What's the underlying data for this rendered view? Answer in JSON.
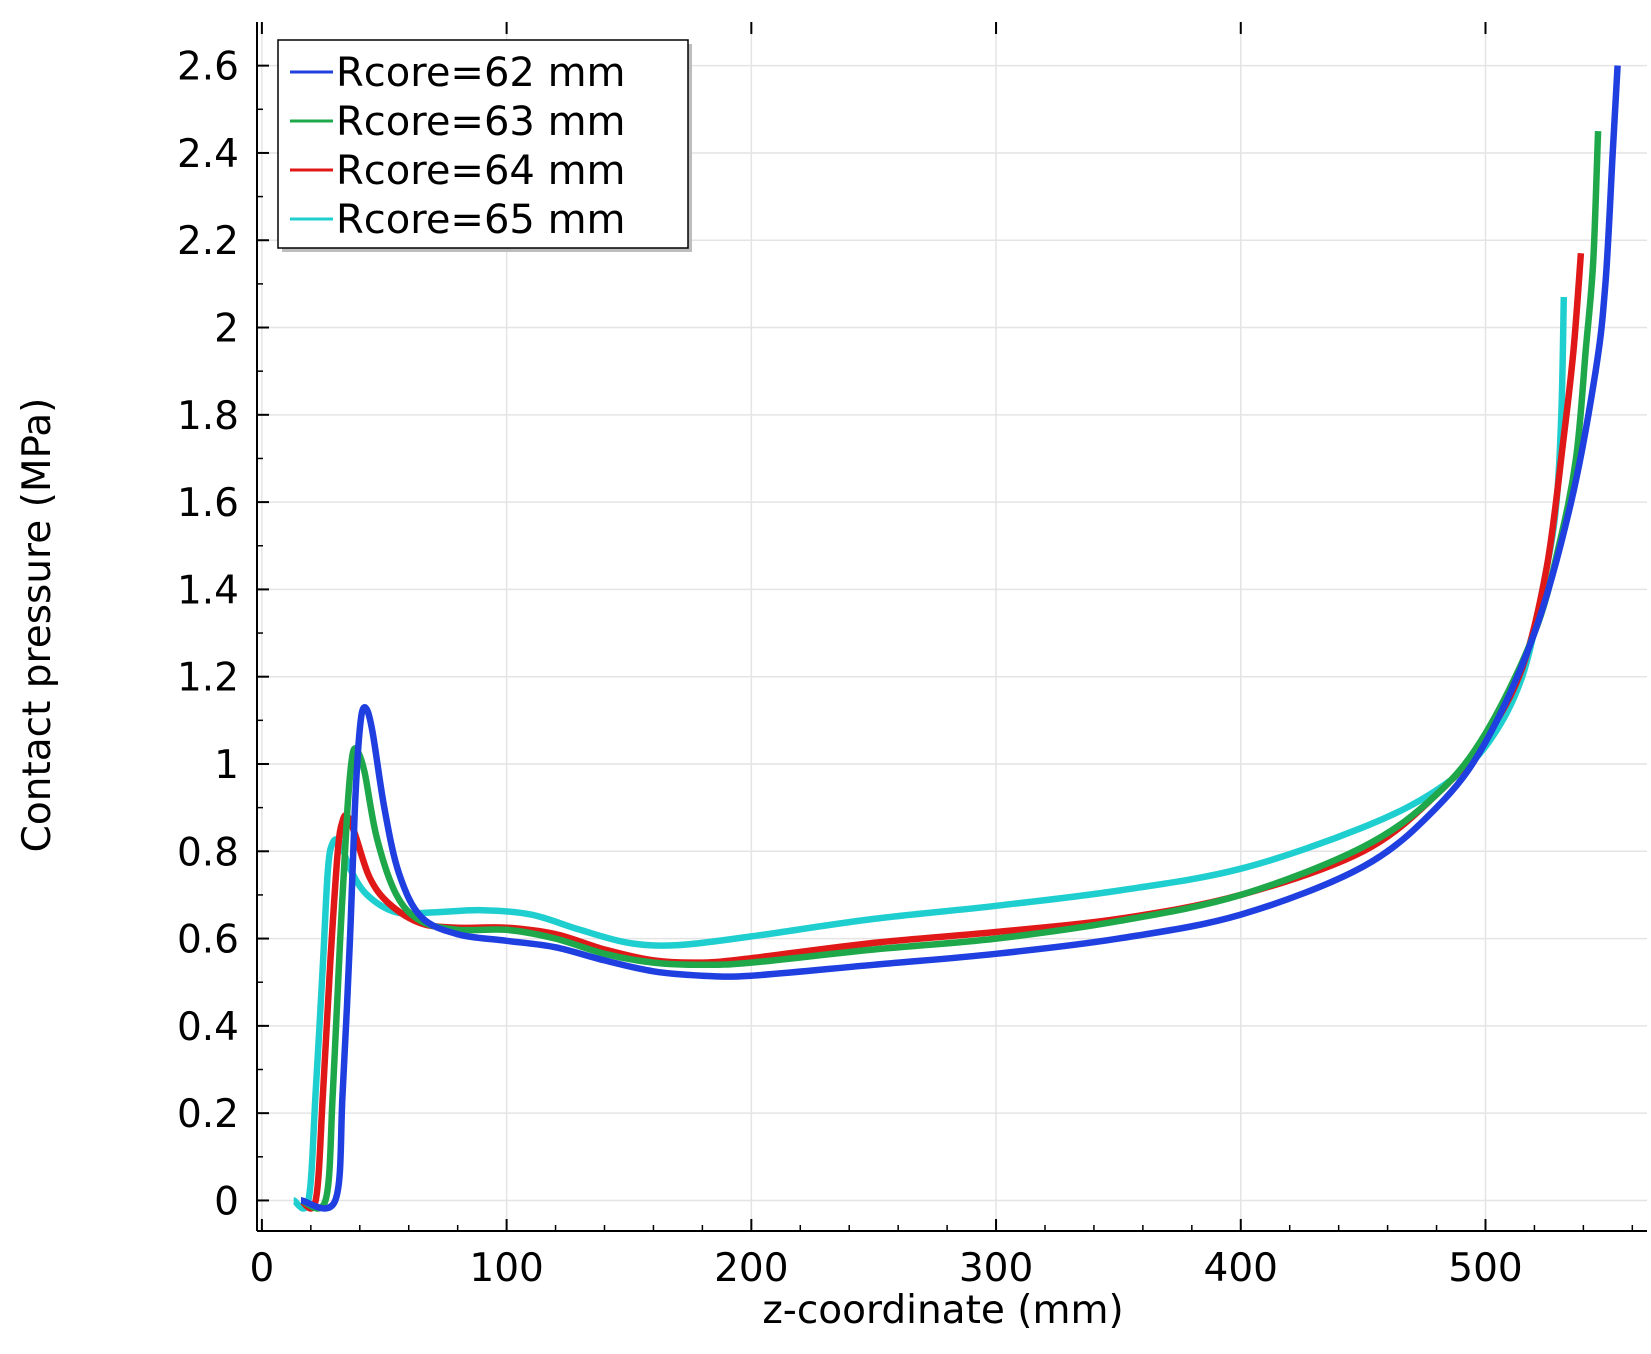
{
  "chart_data": {
    "type": "line",
    "title": "",
    "xlabel": "z-coordinate (mm)",
    "ylabel": "Contact pressure (MPa)",
    "xlim": [
      -2,
      566
    ],
    "ylim": [
      -0.07,
      2.7
    ],
    "grid": true,
    "legend_position": "top-left",
    "x_ticks": [
      0,
      100,
      200,
      300,
      400,
      500
    ],
    "x_tick_labels": [
      "0",
      "100",
      "200",
      "300",
      "400",
      "500"
    ],
    "y_ticks": [
      0,
      0.2,
      0.4,
      0.6,
      0.8,
      1.0,
      1.2,
      1.4,
      1.6,
      1.8,
      2.0,
      2.2,
      2.4,
      2.6
    ],
    "y_tick_labels": [
      "0",
      "0.2",
      "0.4",
      "0.6",
      "0.8",
      "1",
      "1.2",
      "1.4",
      "1.6",
      "1.8",
      "2",
      "2.2",
      "2.4",
      "2.6"
    ],
    "series": [
      {
        "name": "Rcore=62 mm",
        "color": "#1f3fe0",
        "points": [
          [
            16,
            0
          ],
          [
            30,
            0
          ],
          [
            33,
            0.25
          ],
          [
            36,
            0.6
          ],
          [
            38,
            0.9
          ],
          [
            40,
            1.08
          ],
          [
            42,
            1.13
          ],
          [
            45,
            1.08
          ],
          [
            50,
            0.9
          ],
          [
            56,
            0.75
          ],
          [
            65,
            0.65
          ],
          [
            80,
            0.61
          ],
          [
            100,
            0.595
          ],
          [
            120,
            0.58
          ],
          [
            140,
            0.55
          ],
          [
            160,
            0.525
          ],
          [
            180,
            0.515
          ],
          [
            200,
            0.515
          ],
          [
            250,
            0.54
          ],
          [
            300,
            0.565
          ],
          [
            350,
            0.6
          ],
          [
            400,
            0.655
          ],
          [
            450,
            0.765
          ],
          [
            480,
            0.9
          ],
          [
            500,
            1.05
          ],
          [
            520,
            1.3
          ],
          [
            535,
            1.6
          ],
          [
            545,
            1.9
          ],
          [
            549,
            2.1
          ],
          [
            552,
            2.4
          ],
          [
            554,
            2.6
          ]
        ]
      },
      {
        "name": "Rcore=63 mm",
        "color": "#1ea84a",
        "points": [
          [
            16,
            0
          ],
          [
            26,
            0
          ],
          [
            29,
            0.25
          ],
          [
            32,
            0.6
          ],
          [
            35,
            0.9
          ],
          [
            37,
            1.02
          ],
          [
            39,
            1.03
          ],
          [
            42,
            0.98
          ],
          [
            47,
            0.83
          ],
          [
            55,
            0.7
          ],
          [
            65,
            0.64
          ],
          [
            80,
            0.62
          ],
          [
            100,
            0.62
          ],
          [
            120,
            0.6
          ],
          [
            140,
            0.565
          ],
          [
            160,
            0.545
          ],
          [
            180,
            0.54
          ],
          [
            200,
            0.545
          ],
          [
            250,
            0.575
          ],
          [
            300,
            0.6
          ],
          [
            350,
            0.64
          ],
          [
            400,
            0.7
          ],
          [
            450,
            0.81
          ],
          [
            480,
            0.93
          ],
          [
            500,
            1.07
          ],
          [
            520,
            1.3
          ],
          [
            530,
            1.5
          ],
          [
            537,
            1.7
          ],
          [
            541,
            1.95
          ],
          [
            544,
            2.15
          ],
          [
            546,
            2.45
          ]
        ]
      },
      {
        "name": "Rcore=64 mm",
        "color": "#e01818",
        "points": [
          [
            16,
            0
          ],
          [
            22,
            0
          ],
          [
            25,
            0.25
          ],
          [
            28,
            0.55
          ],
          [
            31,
            0.8
          ],
          [
            33,
            0.87
          ],
          [
            35,
            0.88
          ],
          [
            38,
            0.84
          ],
          [
            44,
            0.74
          ],
          [
            52,
            0.68
          ],
          [
            65,
            0.635
          ],
          [
            80,
            0.625
          ],
          [
            100,
            0.625
          ],
          [
            120,
            0.61
          ],
          [
            140,
            0.575
          ],
          [
            160,
            0.55
          ],
          [
            180,
            0.545
          ],
          [
            200,
            0.555
          ],
          [
            250,
            0.59
          ],
          [
            300,
            0.615
          ],
          [
            350,
            0.645
          ],
          [
            400,
            0.7
          ],
          [
            450,
            0.8
          ],
          [
            480,
            0.93
          ],
          [
            500,
            1.06
          ],
          [
            515,
            1.22
          ],
          [
            525,
            1.45
          ],
          [
            532,
            1.75
          ],
          [
            536,
            1.95
          ],
          [
            539,
            2.17
          ]
        ]
      },
      {
        "name": "Rcore=65 mm",
        "color": "#1fcfcf",
        "points": [
          [
            13,
            0
          ],
          [
            19,
            0
          ],
          [
            22,
            0.25
          ],
          [
            25,
            0.55
          ],
          [
            27,
            0.76
          ],
          [
            29,
            0.82
          ],
          [
            32,
            0.82
          ],
          [
            36,
            0.76
          ],
          [
            43,
            0.7
          ],
          [
            55,
            0.66
          ],
          [
            70,
            0.66
          ],
          [
            90,
            0.665
          ],
          [
            110,
            0.655
          ],
          [
            130,
            0.62
          ],
          [
            150,
            0.59
          ],
          [
            170,
            0.585
          ],
          [
            200,
            0.605
          ],
          [
            250,
            0.645
          ],
          [
            300,
            0.675
          ],
          [
            350,
            0.71
          ],
          [
            400,
            0.76
          ],
          [
            450,
            0.855
          ],
          [
            480,
            0.94
          ],
          [
            500,
            1.04
          ],
          [
            515,
            1.2
          ],
          [
            525,
            1.45
          ],
          [
            529,
            1.6
          ],
          [
            531,
            1.8
          ],
          [
            532,
            2.07
          ]
        ]
      }
    ]
  }
}
